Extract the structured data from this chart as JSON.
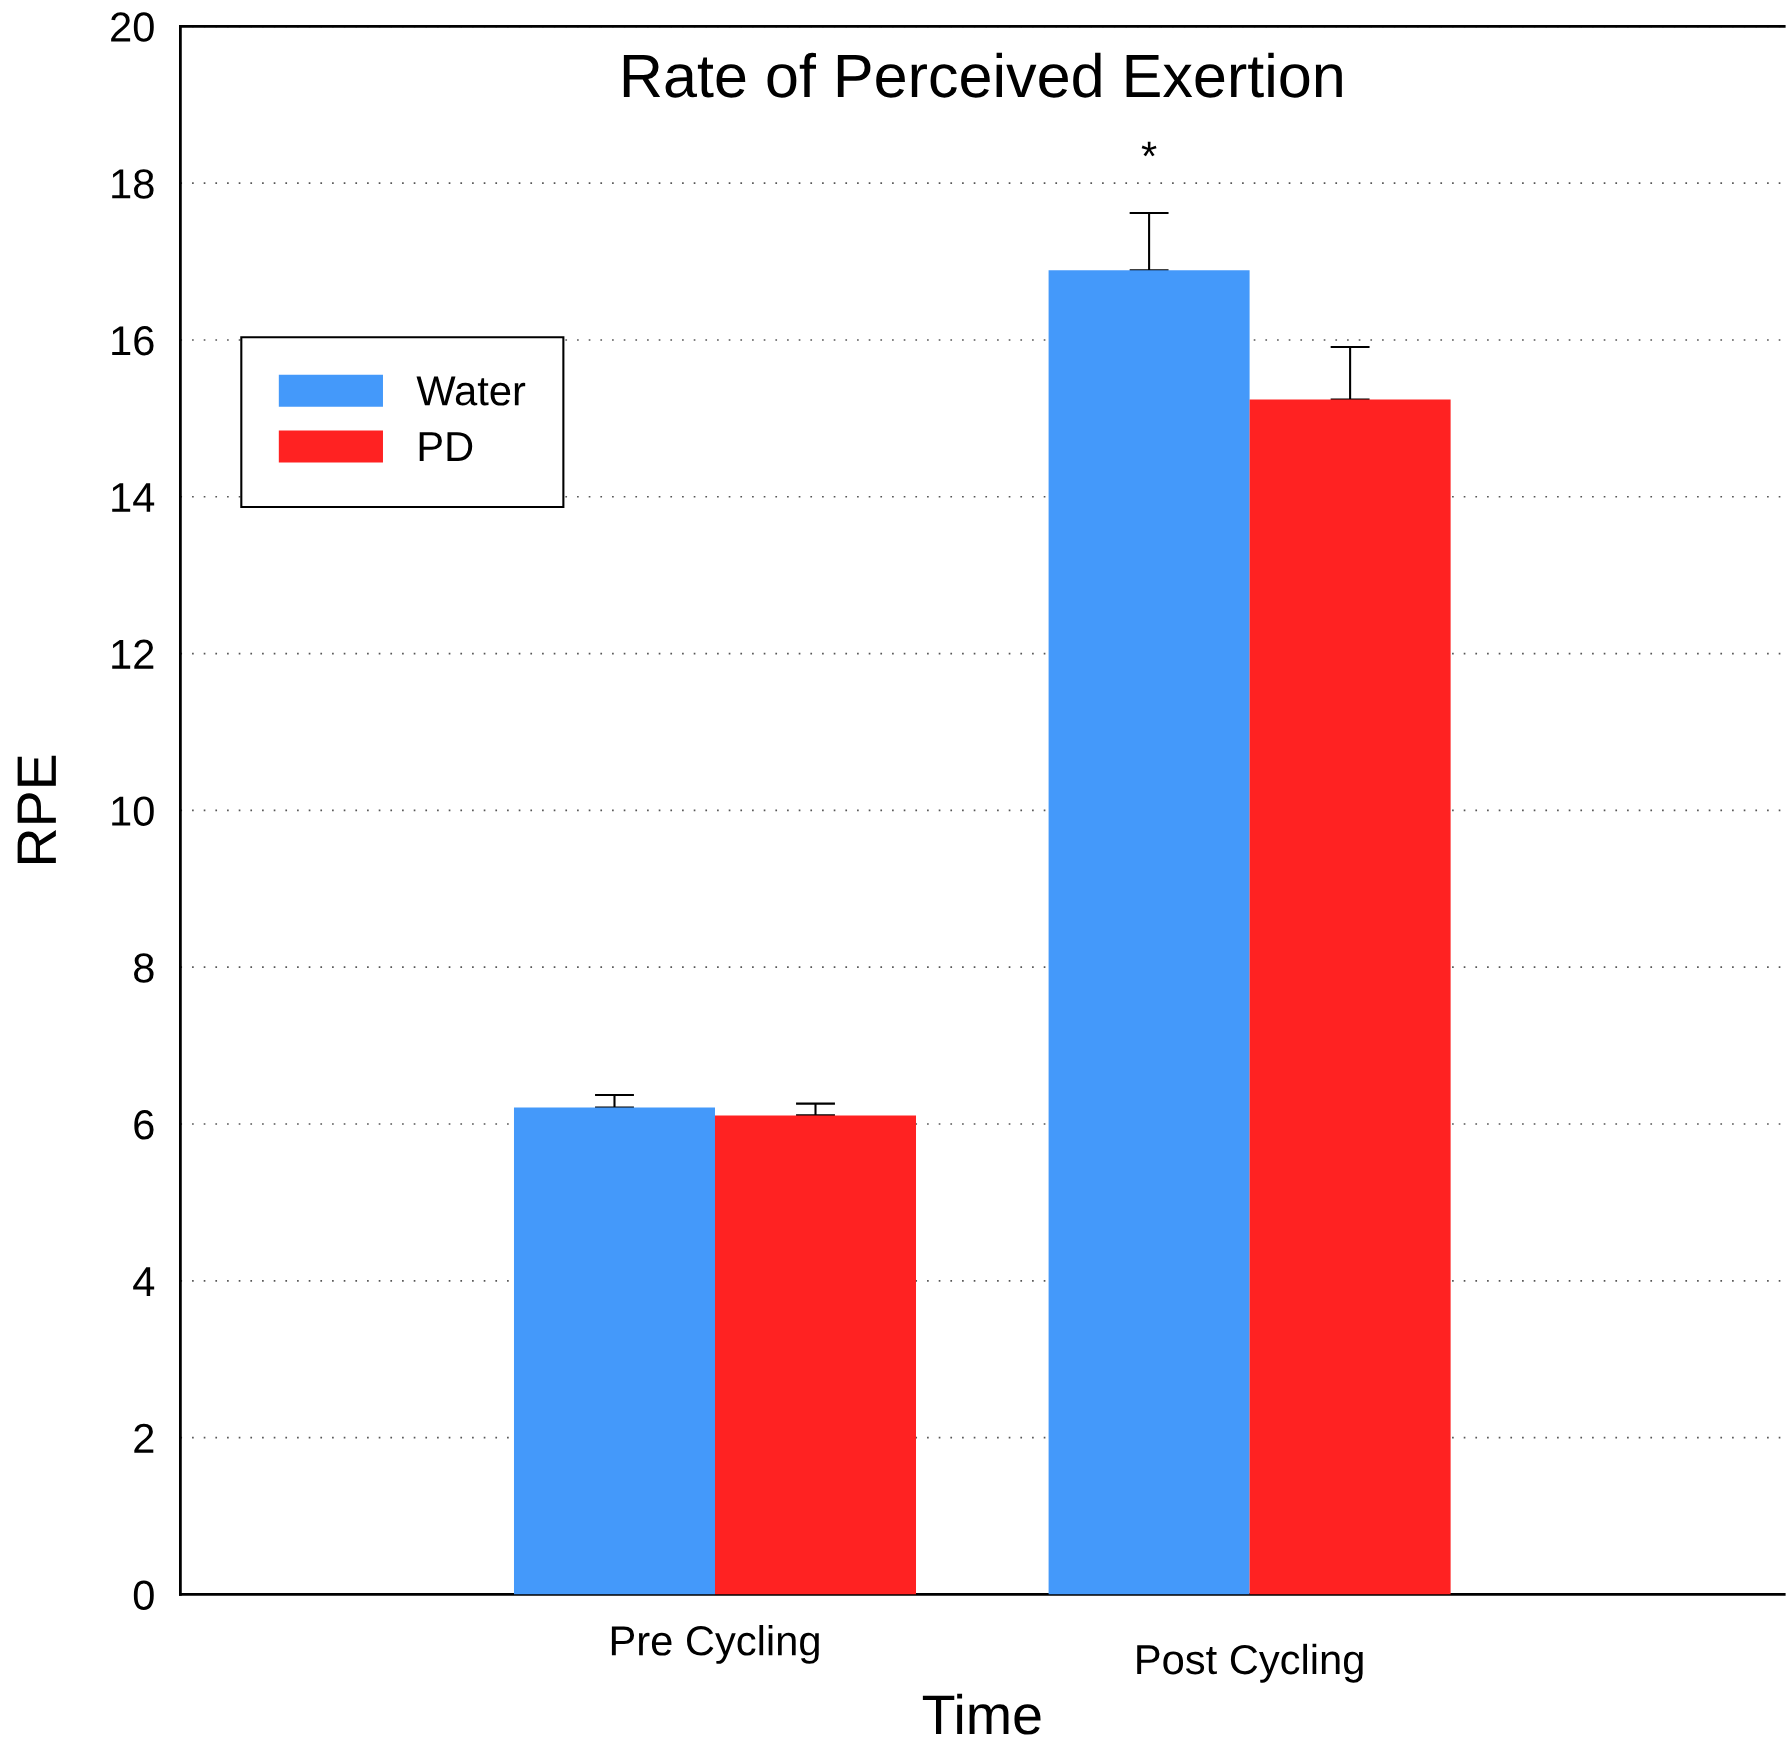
{
  "chart_data": {
    "type": "bar",
    "title": "Rate of Perceived Exertion",
    "xlabel": "Time",
    "ylabel": "RPE",
    "categories": [
      "Pre Cycling",
      "Post Cycling"
    ],
    "series": [
      {
        "name": "Water",
        "color": "#4499fa",
        "values": [
          6.21,
          16.89
        ],
        "errors": [
          [
            6.21,
            6.37
          ],
          [
            16.89,
            17.62
          ]
        ]
      },
      {
        "name": "PD",
        "color": "#ff2222",
        "values": [
          6.11,
          15.24
        ],
        "errors": [
          [
            6.11,
            6.26
          ],
          [
            15.24,
            15.91
          ]
        ]
      }
    ],
    "ylim": [
      0,
      20
    ],
    "yticks": [
      0,
      2,
      4,
      6,
      8,
      10,
      12,
      14,
      16,
      18,
      20
    ],
    "grid": "y",
    "legend": "top left",
    "annotations": [
      "*"
    ]
  }
}
